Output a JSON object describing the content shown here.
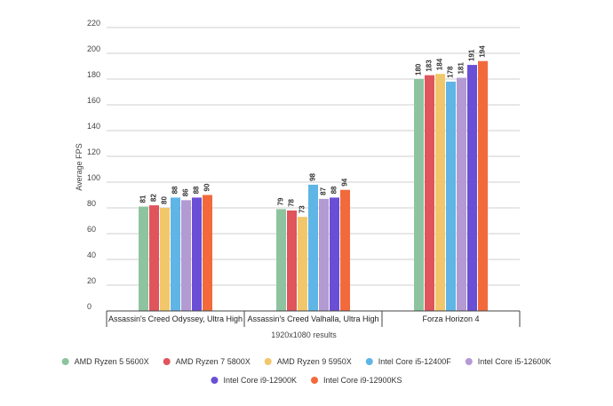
{
  "chart_data": {
    "type": "bar",
    "title": "",
    "xlabel": "1920x1080 results",
    "ylabel": "Average FPS",
    "ylim": [
      0,
      220
    ],
    "yticks": [
      0,
      20,
      40,
      60,
      80,
      100,
      120,
      140,
      160,
      180,
      200,
      220
    ],
    "grid": true,
    "legend_position": "bottom",
    "categories": [
      "Assassin's Creed Odyssey, Ultra High",
      "Assassin's Creed Valhalla, Ultra High",
      "Forza Horizon 4"
    ],
    "series": [
      {
        "name": "AMD Ryzen 5 5600X",
        "color": "#8dc49f",
        "values": [
          81,
          79,
          180
        ]
      },
      {
        "name": "AMD Ryzen 7 5800X",
        "color": "#e0545c",
        "values": [
          82,
          78,
          183
        ]
      },
      {
        "name": "AMD Ryzen 9 5950X",
        "color": "#f2c76b",
        "values": [
          80,
          73,
          184
        ]
      },
      {
        "name": "Intel Core i5-12400F",
        "color": "#5fb5e6",
        "values": [
          88,
          98,
          178
        ]
      },
      {
        "name": "Intel Core i5-12600K",
        "color": "#b39ad2",
        "values": [
          86,
          87,
          181
        ]
      },
      {
        "name": "Intel Core i9-12900K",
        "color": "#6a4fd6",
        "values": [
          88,
          88,
          191
        ]
      },
      {
        "name": "Intel Core i9-12900KS",
        "color": "#f26a3c",
        "values": [
          90,
          94,
          194
        ]
      }
    ]
  }
}
